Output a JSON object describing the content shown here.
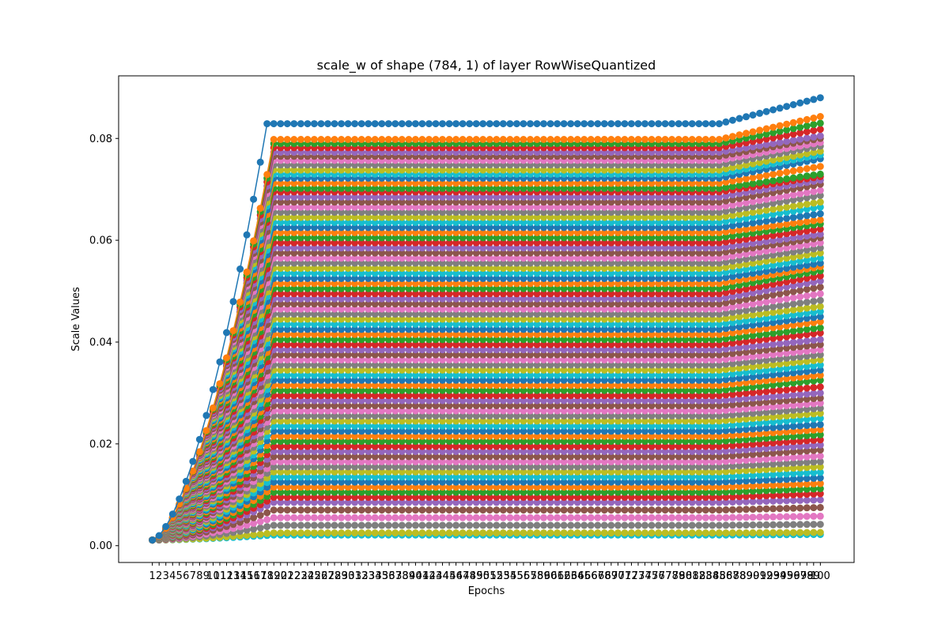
{
  "chart_data": {
    "type": "line",
    "title": "scale_w of shape (784, 1) of layer RowWiseQuantized",
    "xlabel": "Epochs",
    "ylabel": "Scale Values",
    "x_ticks": [
      "1",
      "2",
      "3",
      "4",
      "5",
      "6",
      "7",
      "8",
      "9",
      "10",
      "11",
      "12",
      "13",
      "14",
      "15",
      "16",
      "17",
      "18",
      "19",
      "20",
      "21",
      "22",
      "23",
      "24",
      "25",
      "26",
      "27",
      "28",
      "29",
      "30",
      "31",
      "32",
      "33",
      "34",
      "35",
      "36",
      "37",
      "38",
      "39",
      "40",
      "41",
      "42",
      "43",
      "44",
      "45",
      "46",
      "47",
      "48",
      "49",
      "50",
      "51",
      "52",
      "53",
      "54",
      "55",
      "56",
      "57",
      "58",
      "59",
      "60",
      "61",
      "62",
      "63",
      "64",
      "65",
      "66",
      "67",
      "68",
      "69",
      "70",
      "71",
      "72",
      "73",
      "74",
      "75",
      "76",
      "77",
      "78",
      "79",
      "80",
      "81",
      "82",
      "83",
      "84",
      "85",
      "86",
      "87",
      "88",
      "89",
      "90",
      "91",
      "92",
      "93",
      "94",
      "95",
      "96",
      "97",
      "98",
      "99",
      "100"
    ],
    "y_ticks": [
      "0.00",
      "0.02",
      "0.04",
      "0.06",
      "0.08"
    ],
    "y_tick_values": [
      0.0,
      0.02,
      0.04,
      0.06,
      0.08
    ],
    "xlim": [
      -4,
      105
    ],
    "ylim": [
      -0.0033,
      0.0923
    ],
    "marker": "circle",
    "legend": "none",
    "grid": false,
    "series_count": 784,
    "series_shape": "each series rises from about 0.001 at epoch 1 to a plateau reached by epoch 19, stays flat through epoch 85, then rises slightly to epoch 100",
    "colors": [
      "#1f77b4",
      "#ff7f0e",
      "#2ca02c",
      "#d62728",
      "#9467bd",
      "#8c564b",
      "#e377c2",
      "#7f7f7f",
      "#bcbd22",
      "#17becf"
    ],
    "series": [
      {
        "plateau": 0.0829,
        "final": 0.088,
        "rise_end": 18
      },
      {
        "plateau": 0.0798,
        "final": 0.0843,
        "rise_end": 19
      },
      {
        "plateau": 0.079,
        "final": 0.083,
        "rise_end": 19
      },
      {
        "plateau": 0.0782,
        "final": 0.0818,
        "rise_end": 19
      },
      {
        "plateau": 0.0773,
        "final": 0.0805,
        "rise_end": 19
      },
      {
        "plateau": 0.0765,
        "final": 0.08,
        "rise_end": 19
      },
      {
        "plateau": 0.0757,
        "final": 0.0792,
        "rise_end": 19
      },
      {
        "plateau": 0.0748,
        "final": 0.0785,
        "rise_end": 19
      },
      {
        "plateau": 0.0738,
        "final": 0.0775,
        "rise_end": 19
      },
      {
        "plateau": 0.073,
        "final": 0.0768,
        "rise_end": 19
      },
      {
        "plateau": 0.0722,
        "final": 0.076,
        "rise_end": 19
      },
      {
        "plateau": 0.0712,
        "final": 0.0745,
        "rise_end": 19
      },
      {
        "plateau": 0.0702,
        "final": 0.073,
        "rise_end": 19
      },
      {
        "plateau": 0.0695,
        "final": 0.0725,
        "rise_end": 19
      },
      {
        "plateau": 0.0685,
        "final": 0.0718,
        "rise_end": 19
      },
      {
        "plateau": 0.0675,
        "final": 0.071,
        "rise_end": 19
      },
      {
        "plateau": 0.0665,
        "final": 0.0698,
        "rise_end": 19
      },
      {
        "plateau": 0.0655,
        "final": 0.0688,
        "rise_end": 19
      },
      {
        "plateau": 0.0645,
        "final": 0.0675,
        "rise_end": 19
      },
      {
        "plateau": 0.0635,
        "final": 0.0665,
        "rise_end": 19
      },
      {
        "plateau": 0.0625,
        "final": 0.0652,
        "rise_end": 19
      },
      {
        "plateau": 0.0615,
        "final": 0.064,
        "rise_end": 19
      },
      {
        "plateau": 0.0605,
        "final": 0.0632,
        "rise_end": 19
      },
      {
        "plateau": 0.0595,
        "final": 0.0622,
        "rise_end": 19
      },
      {
        "plateau": 0.0585,
        "final": 0.0612,
        "rise_end": 19
      },
      {
        "plateau": 0.0575,
        "final": 0.0605,
        "rise_end": 19
      },
      {
        "plateau": 0.0565,
        "final": 0.0595,
        "rise_end": 19
      },
      {
        "plateau": 0.0555,
        "final": 0.0585,
        "rise_end": 19
      },
      {
        "plateau": 0.0545,
        "final": 0.0575,
        "rise_end": 19
      },
      {
        "plateau": 0.0535,
        "final": 0.0565,
        "rise_end": 19
      },
      {
        "plateau": 0.0525,
        "final": 0.0555,
        "rise_end": 19
      },
      {
        "plateau": 0.0515,
        "final": 0.0548,
        "rise_end": 19
      },
      {
        "plateau": 0.0505,
        "final": 0.054,
        "rise_end": 19
      },
      {
        "plateau": 0.0495,
        "final": 0.053,
        "rise_end": 19
      },
      {
        "plateau": 0.0485,
        "final": 0.052,
        "rise_end": 19
      },
      {
        "plateau": 0.0475,
        "final": 0.0508,
        "rise_end": 19
      },
      {
        "plateau": 0.0465,
        "final": 0.0495,
        "rise_end": 19
      },
      {
        "plateau": 0.0455,
        "final": 0.0482,
        "rise_end": 19
      },
      {
        "plateau": 0.0445,
        "final": 0.047,
        "rise_end": 19
      },
      {
        "plateau": 0.0435,
        "final": 0.046,
        "rise_end": 19
      },
      {
        "plateau": 0.0425,
        "final": 0.045,
        "rise_end": 19
      },
      {
        "plateau": 0.0415,
        "final": 0.044,
        "rise_end": 19
      },
      {
        "plateau": 0.0405,
        "final": 0.0428,
        "rise_end": 19
      },
      {
        "plateau": 0.0395,
        "final": 0.0418,
        "rise_end": 19
      },
      {
        "plateau": 0.0385,
        "final": 0.0405,
        "rise_end": 19
      },
      {
        "plateau": 0.0375,
        "final": 0.0395,
        "rise_end": 19
      },
      {
        "plateau": 0.0365,
        "final": 0.0385,
        "rise_end": 19
      },
      {
        "plateau": 0.0355,
        "final": 0.0375,
        "rise_end": 19
      },
      {
        "plateau": 0.0345,
        "final": 0.0365,
        "rise_end": 19
      },
      {
        "plateau": 0.0335,
        "final": 0.0355,
        "rise_end": 19
      },
      {
        "plateau": 0.0325,
        "final": 0.0345,
        "rise_end": 19
      },
      {
        "plateau": 0.0315,
        "final": 0.0335,
        "rise_end": 19
      },
      {
        "plateau": 0.0305,
        "final": 0.0325,
        "rise_end": 19
      },
      {
        "plateau": 0.0295,
        "final": 0.0312,
        "rise_end": 19
      },
      {
        "plateau": 0.0285,
        "final": 0.03,
        "rise_end": 19
      },
      {
        "plateau": 0.0275,
        "final": 0.029,
        "rise_end": 19
      },
      {
        "plateau": 0.0265,
        "final": 0.028,
        "rise_end": 19
      },
      {
        "plateau": 0.0255,
        "final": 0.027,
        "rise_end": 19
      },
      {
        "plateau": 0.0245,
        "final": 0.026,
        "rise_end": 19
      },
      {
        "plateau": 0.0235,
        "final": 0.025,
        "rise_end": 19
      },
      {
        "plateau": 0.0225,
        "final": 0.0238,
        "rise_end": 19
      },
      {
        "plateau": 0.0215,
        "final": 0.0228,
        "rise_end": 19
      },
      {
        "plateau": 0.0205,
        "final": 0.0218,
        "rise_end": 19
      },
      {
        "plateau": 0.0195,
        "final": 0.0208,
        "rise_end": 19
      },
      {
        "plateau": 0.0185,
        "final": 0.0198,
        "rise_end": 19
      },
      {
        "plateau": 0.0175,
        "final": 0.0188,
        "rise_end": 19
      },
      {
        "plateau": 0.0165,
        "final": 0.0176,
        "rise_end": 19
      },
      {
        "plateau": 0.0155,
        "final": 0.0165,
        "rise_end": 19
      },
      {
        "plateau": 0.0145,
        "final": 0.0155,
        "rise_end": 19
      },
      {
        "plateau": 0.0135,
        "final": 0.0144,
        "rise_end": 19
      },
      {
        "plateau": 0.0125,
        "final": 0.0133,
        "rise_end": 19
      },
      {
        "plateau": 0.0115,
        "final": 0.0122,
        "rise_end": 19
      },
      {
        "plateau": 0.0105,
        "final": 0.0112,
        "rise_end": 19
      },
      {
        "plateau": 0.0095,
        "final": 0.0102,
        "rise_end": 19
      },
      {
        "plateau": 0.0085,
        "final": 0.009,
        "rise_end": 19
      },
      {
        "plateau": 0.007,
        "final": 0.0075,
        "rise_end": 19
      },
      {
        "plateau": 0.0055,
        "final": 0.0058,
        "rise_end": 19
      },
      {
        "plateau": 0.004,
        "final": 0.0042,
        "rise_end": 19
      },
      {
        "plateau": 0.0025,
        "final": 0.0026,
        "rise_end": 19
      },
      {
        "plateau": 0.0021,
        "final": 0.0022,
        "rise_end": 19
      }
    ]
  }
}
